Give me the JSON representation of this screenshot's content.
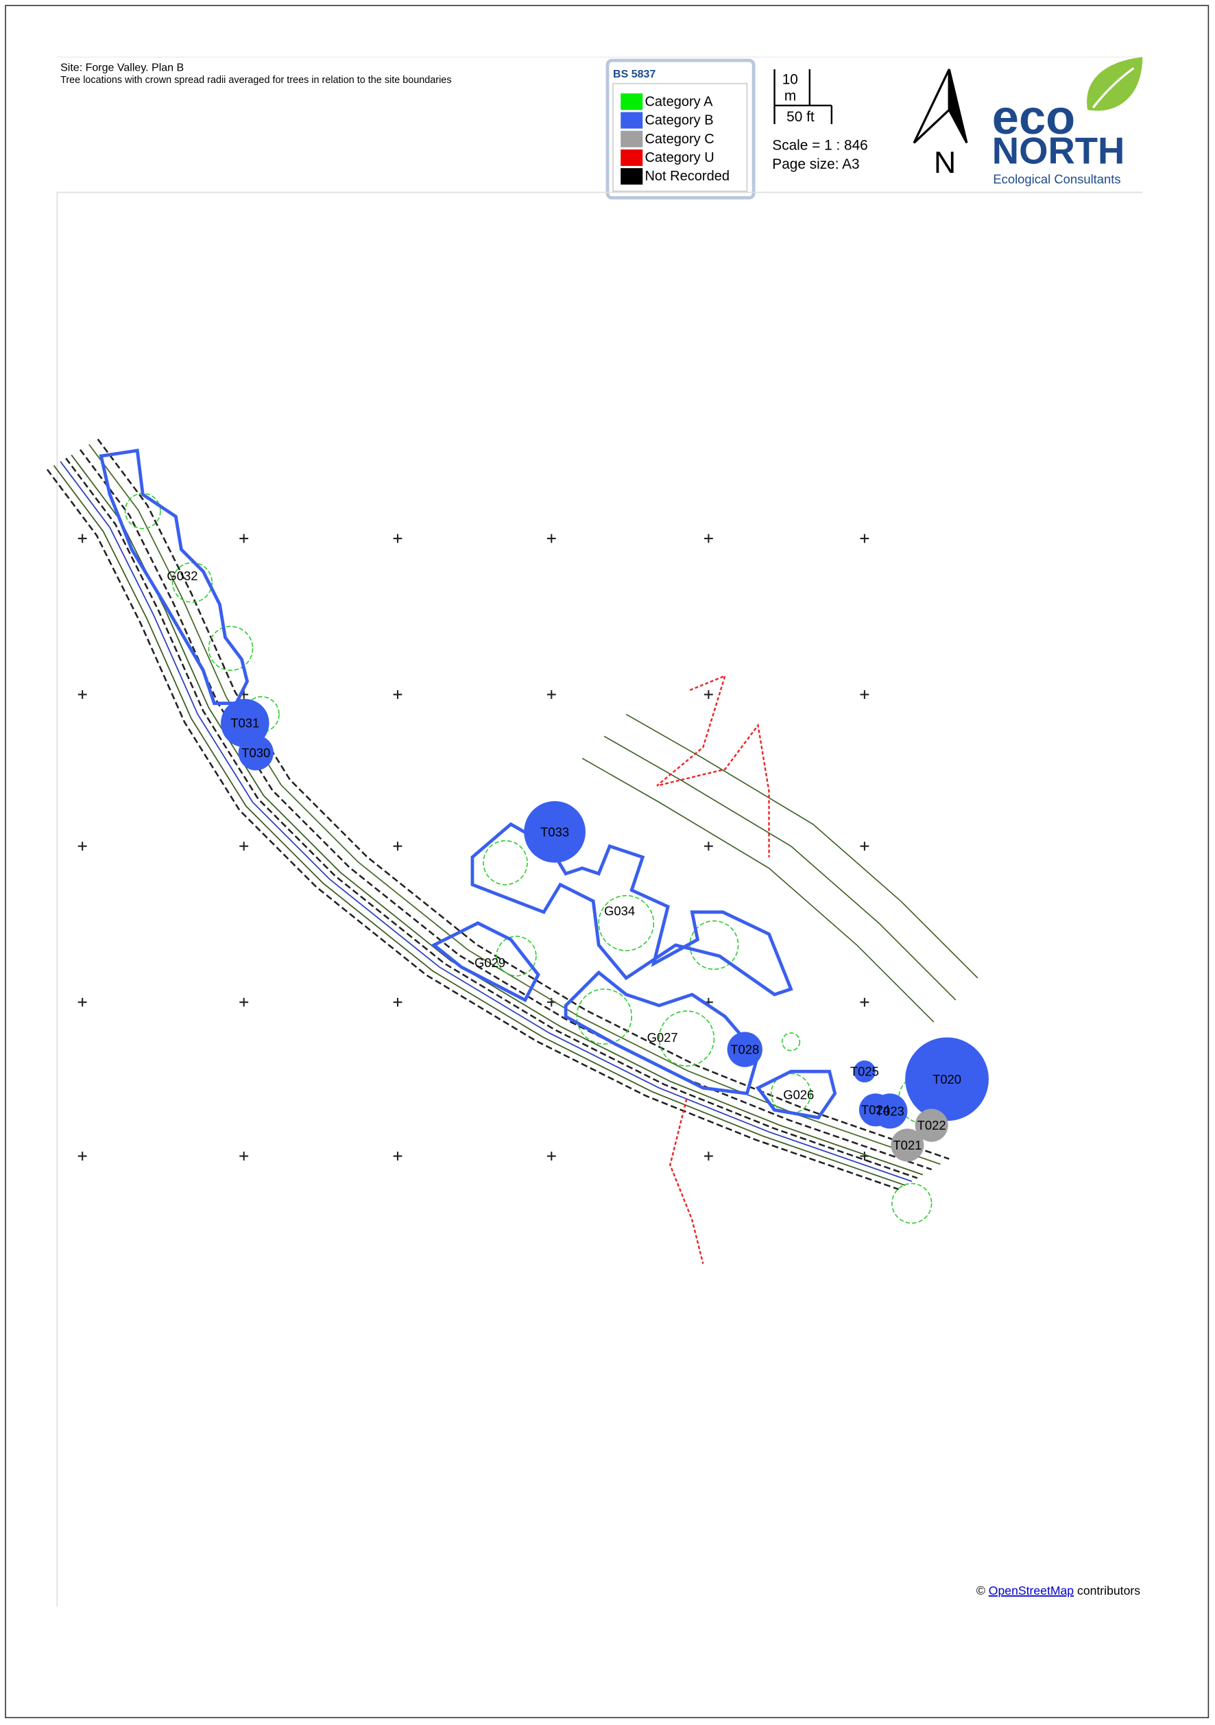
{
  "header": {
    "title": "Site: Forge Valley. Plan B",
    "subtitle": "Tree locations with crown spread radii averaged for trees in relation to the site boundaries"
  },
  "legend": {
    "title": "BS 5837",
    "items": [
      {
        "label": "Category A",
        "color": "#00ee00"
      },
      {
        "label": "Category B",
        "color": "#3a5fee"
      },
      {
        "label": "Category C",
        "color": "#a0a0a0"
      },
      {
        "label": "Category U",
        "color": "#ee0000"
      },
      {
        "label": "Not Recorded",
        "color": "#000000"
      }
    ]
  },
  "scale_bar": {
    "metric": "10",
    "metric_unit": "m",
    "imperial": "50 ft",
    "scale": "Scale = 1 : 846",
    "page_size": "Page size: A3"
  },
  "north": "N",
  "logo": {
    "eco": "eco",
    "north": "NORTH",
    "tagline": "Ecological Consultants"
  },
  "trees": [
    {
      "label": "T031",
      "category": "Category B"
    },
    {
      "label": "T030",
      "category": "Category B"
    },
    {
      "label": "T033",
      "category": "Category B"
    },
    {
      "label": "T028",
      "category": "Category B"
    },
    {
      "label": "T025",
      "category": "Category B"
    },
    {
      "label": "T020",
      "category": "Category B"
    },
    {
      "label": "T024",
      "category": "Category B"
    },
    {
      "label": "T023",
      "category": "Category B"
    },
    {
      "label": "T022",
      "category": "Category C"
    },
    {
      "label": "T021",
      "category": "Category C"
    }
  ],
  "groups": [
    {
      "label": "G032"
    },
    {
      "label": "G034"
    },
    {
      "label": "G029"
    },
    {
      "label": "G027"
    },
    {
      "label": "G026"
    }
  ],
  "attribution": {
    "prefix": "©",
    "link": "OpenStreetMap",
    "suffix": "contributors"
  }
}
